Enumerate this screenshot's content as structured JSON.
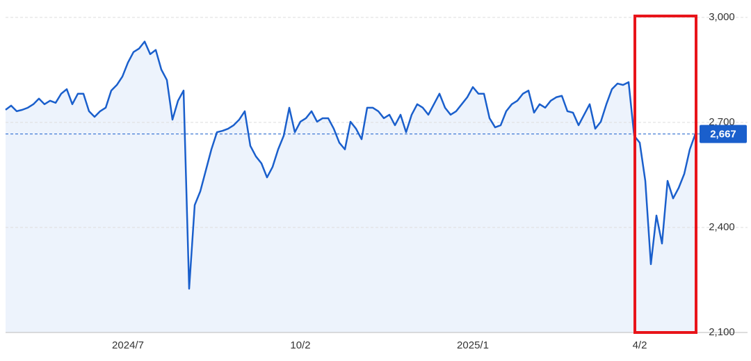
{
  "chart_data": {
    "type": "line",
    "categories": [
      null,
      null,
      null,
      null,
      null,
      null,
      null,
      null,
      null,
      null,
      null,
      null,
      null,
      null,
      null,
      null,
      null,
      null,
      null,
      null,
      null,
      null,
      "2024/7",
      null,
      null,
      null,
      null,
      null,
      null,
      null,
      null,
      null,
      null,
      null,
      null,
      null,
      null,
      null,
      null,
      null,
      null,
      null,
      null,
      null,
      null,
      null,
      null,
      null,
      null,
      null,
      null,
      null,
      null,
      "10/2",
      null,
      null,
      null,
      null,
      null,
      null,
      null,
      null,
      null,
      null,
      null,
      null,
      null,
      null,
      null,
      null,
      null,
      null,
      null,
      null,
      null,
      null,
      null,
      null,
      null,
      null,
      null,
      null,
      null,
      null,
      "2025/1",
      null,
      null,
      null,
      null,
      null,
      null,
      null,
      null,
      null,
      null,
      null,
      null,
      null,
      null,
      null,
      null,
      null,
      null,
      null,
      null,
      null,
      null,
      null,
      null,
      null,
      null,
      null,
      null,
      null,
      "4/2",
      null,
      null,
      null,
      null,
      null,
      null,
      null,
      null,
      null,
      null
    ],
    "values": [
      2736,
      2748,
      2732,
      2736,
      2742,
      2752,
      2768,
      2752,
      2762,
      2756,
      2782,
      2795,
      2752,
      2782,
      2782,
      2732,
      2716,
      2732,
      2742,
      2791,
      2807,
      2831,
      2871,
      2901,
      2911,
      2931,
      2895,
      2907,
      2851,
      2821,
      2708,
      2762,
      2791,
      2225,
      2464,
      2503,
      2563,
      2623,
      2672,
      2676,
      2682,
      2692,
      2708,
      2732,
      2633,
      2603,
      2583,
      2543,
      2573,
      2623,
      2662,
      2742,
      2672,
      2702,
      2712,
      2732,
      2702,
      2712,
      2712,
      2682,
      2642,
      2623,
      2702,
      2682,
      2652,
      2742,
      2742,
      2732,
      2712,
      2722,
      2692,
      2722,
      2672,
      2722,
      2752,
      2742,
      2722,
      2752,
      2782,
      2742,
      2722,
      2732,
      2752,
      2772,
      2801,
      2782,
      2782,
      2712,
      2686,
      2692,
      2732,
      2752,
      2762,
      2782,
      2791,
      2728,
      2752,
      2742,
      2762,
      2772,
      2776,
      2732,
      2728,
      2692,
      2722,
      2752,
      2682,
      2702,
      2752,
      2795,
      2811,
      2807,
      2815,
      2662,
      2642,
      2533,
      2295,
      2434,
      2354,
      2533,
      2483,
      2513,
      2553,
      2623,
      2667
    ],
    "color": "#1a5fcc",
    "ylim": [
      2100,
      3000
    ],
    "yticks": [
      {
        "value": 2100,
        "label": "2,100"
      },
      {
        "value": 2400,
        "label": "2,400"
      },
      {
        "value": 2700,
        "label": "2,700"
      },
      {
        "value": 3000,
        "label": "3,000"
      }
    ],
    "grid": true,
    "last_value": {
      "value": 2667,
      "label": "2,667"
    }
  }
}
